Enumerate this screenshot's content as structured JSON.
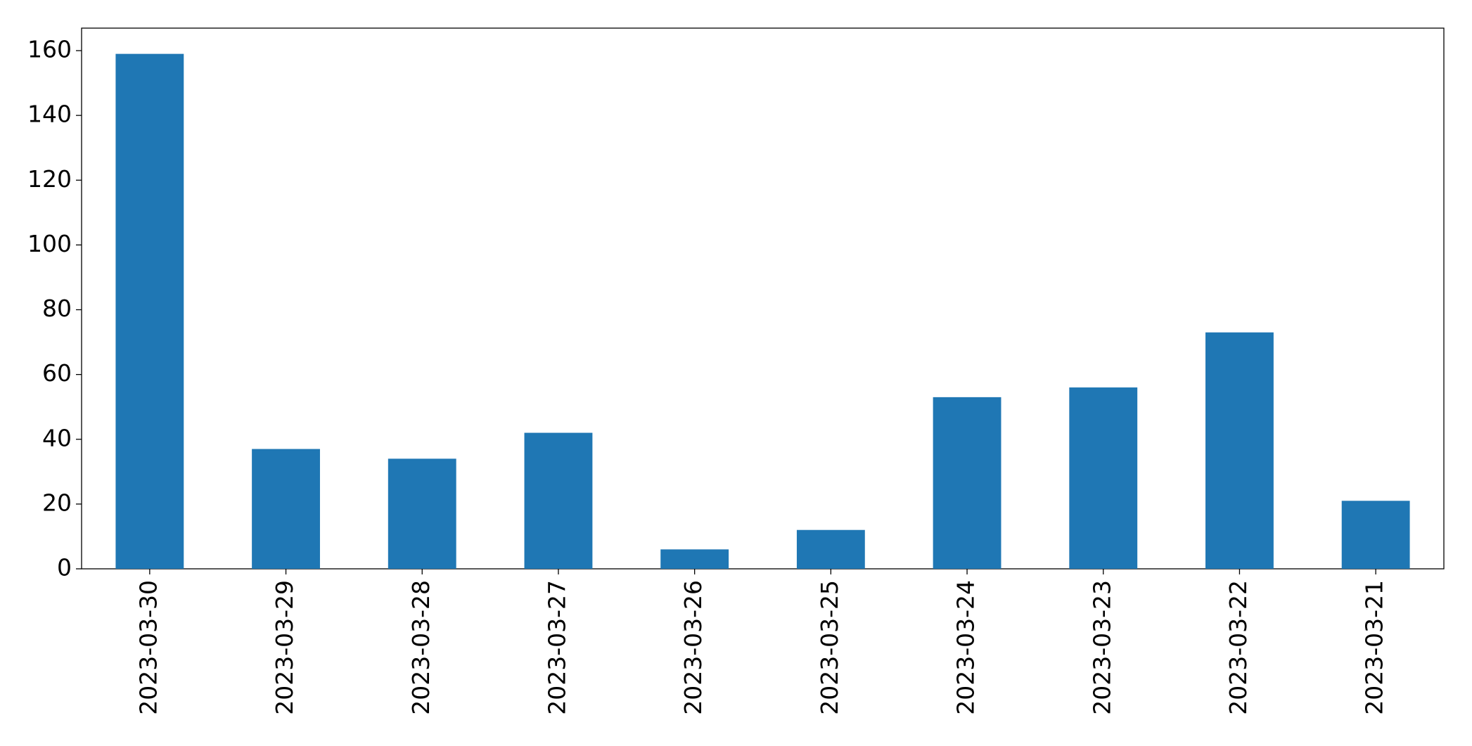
{
  "chart_data": {
    "type": "bar",
    "categories": [
      "2023-03-30",
      "2023-03-29",
      "2023-03-28",
      "2023-03-27",
      "2023-03-26",
      "2023-03-25",
      "2023-03-24",
      "2023-03-23",
      "2023-03-22",
      "2023-03-21"
    ],
    "values": [
      159,
      37,
      34,
      42,
      6,
      12,
      53,
      56,
      73,
      21
    ],
    "color": "#1f77b4",
    "ylim": [
      0,
      166.95
    ],
    "yticks": [
      0,
      20,
      40,
      60,
      80,
      100,
      120,
      140,
      160
    ],
    "grid": false
  }
}
